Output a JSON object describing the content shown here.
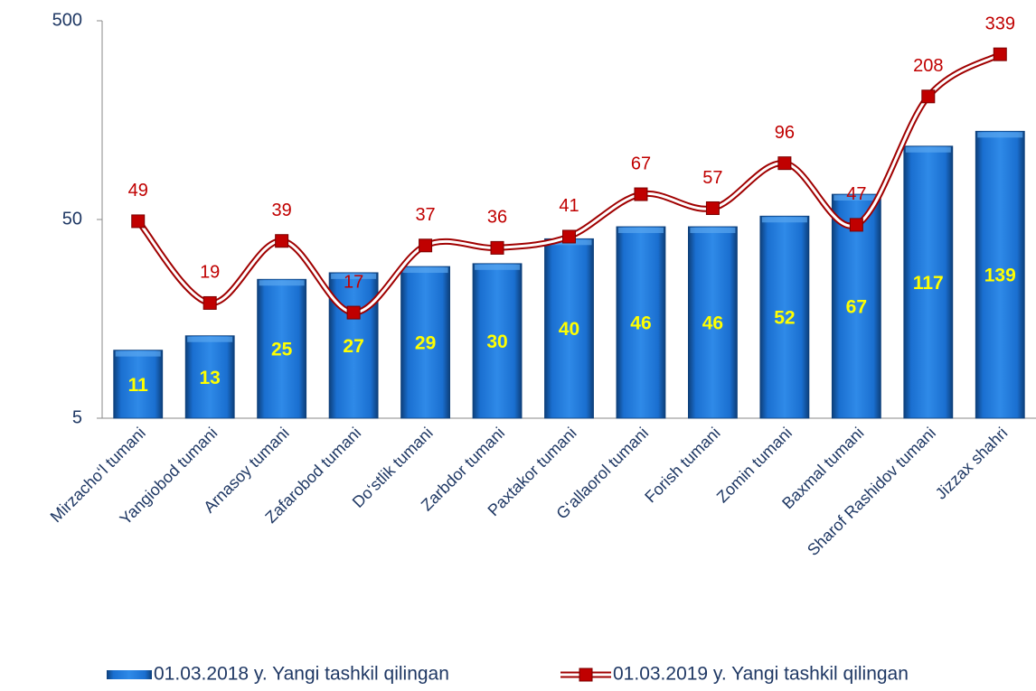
{
  "chart_data": {
    "type": "bar_line",
    "log_scale": true,
    "categories": [
      "Mirzacho‘l tumani",
      "Yangiobod tumani",
      "Arnasoy tumani",
      "Zafarobod tumani",
      "Do‘stlik tumani",
      "Zarbdor tumani",
      "Paxtakor tumani",
      "G‘allaorol tumani",
      "Forish tumani",
      "Zomin tumani",
      "Baxmal tumani",
      "Sharof Rashidov tumani",
      "Jizzax shahri"
    ],
    "series": [
      {
        "name": "01.03.2018 y. Yangi tashkil qilingan",
        "type": "bar",
        "color": "#1565c0",
        "values": [
          11,
          13,
          25,
          27,
          29,
          30,
          40,
          46,
          46,
          52,
          67,
          117,
          139
        ]
      },
      {
        "name": "01.03.2019 y. Yangi tashkil qilingan",
        "type": "line",
        "color": "#c00000",
        "values": [
          49,
          19,
          39,
          17,
          37,
          36,
          41,
          67,
          57,
          96,
          47,
          208,
          339
        ]
      }
    ],
    "ylim": [
      5,
      500
    ],
    "yticks": [
      5,
      50,
      500
    ],
    "legend": "bottom"
  }
}
